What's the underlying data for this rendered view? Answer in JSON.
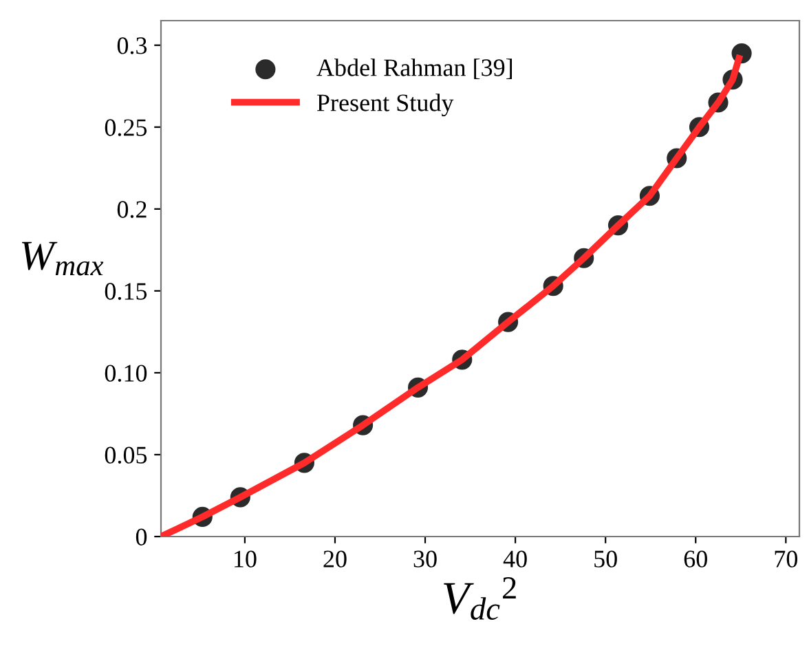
{
  "chart_data": {
    "type": "scatter",
    "xlabel": "V$_{dc}$$^{2}$",
    "ylabel": "W$_{max}$",
    "xlim": [
      0.7,
      71.5
    ],
    "xticks": [
      10,
      20,
      30,
      40,
      50,
      60,
      70
    ],
    "ylim": [
      0,
      0.315
    ],
    "yticks": [
      0,
      0.05,
      {
        "value": 0.1,
        "label": "0.10"
      },
      0.15,
      {
        "value": 0.2,
        "label": "0.2"
      },
      0.25,
      {
        "value": 0.3,
        "label": "0.3"
      }
    ],
    "grid": false,
    "legend": "top left",
    "series": [
      {
        "name": "Abdel Rahman [39]",
        "marker": "circle",
        "color": "#2b2b2b",
        "x": [
          5.3,
          9.5,
          16.6,
          23.1,
          29.2,
          34.1,
          39.2,
          44.2,
          47.6,
          51.4,
          54.9,
          57.9,
          60.4,
          62.5,
          64.1,
          65.1
        ],
        "values": [
          0.012,
          0.024,
          0.045,
          0.068,
          0.091,
          0.108,
          0.131,
          0.153,
          0.17,
          0.19,
          0.208,
          0.231,
          0.25,
          0.265,
          0.279,
          0.295
        ]
      },
      {
        "name": "Present Study",
        "type": "line",
        "marker": "none",
        "line_style": "solid",
        "color": "#ff2a2a",
        "x": [
          0.7,
          5.3,
          9.5,
          16.6,
          23.1,
          29.2,
          34.1,
          39.2,
          44.2,
          47.6,
          51.4,
          54.9,
          57.9,
          60.4,
          62.5,
          64.1,
          64.8
        ],
        "values": [
          0,
          0.012,
          0.024,
          0.045,
          0.068,
          0.091,
          0.108,
          0.131,
          0.153,
          0.17,
          0.19,
          0.208,
          0.231,
          0.25,
          0.265,
          0.279,
          0.292
        ]
      }
    ]
  }
}
